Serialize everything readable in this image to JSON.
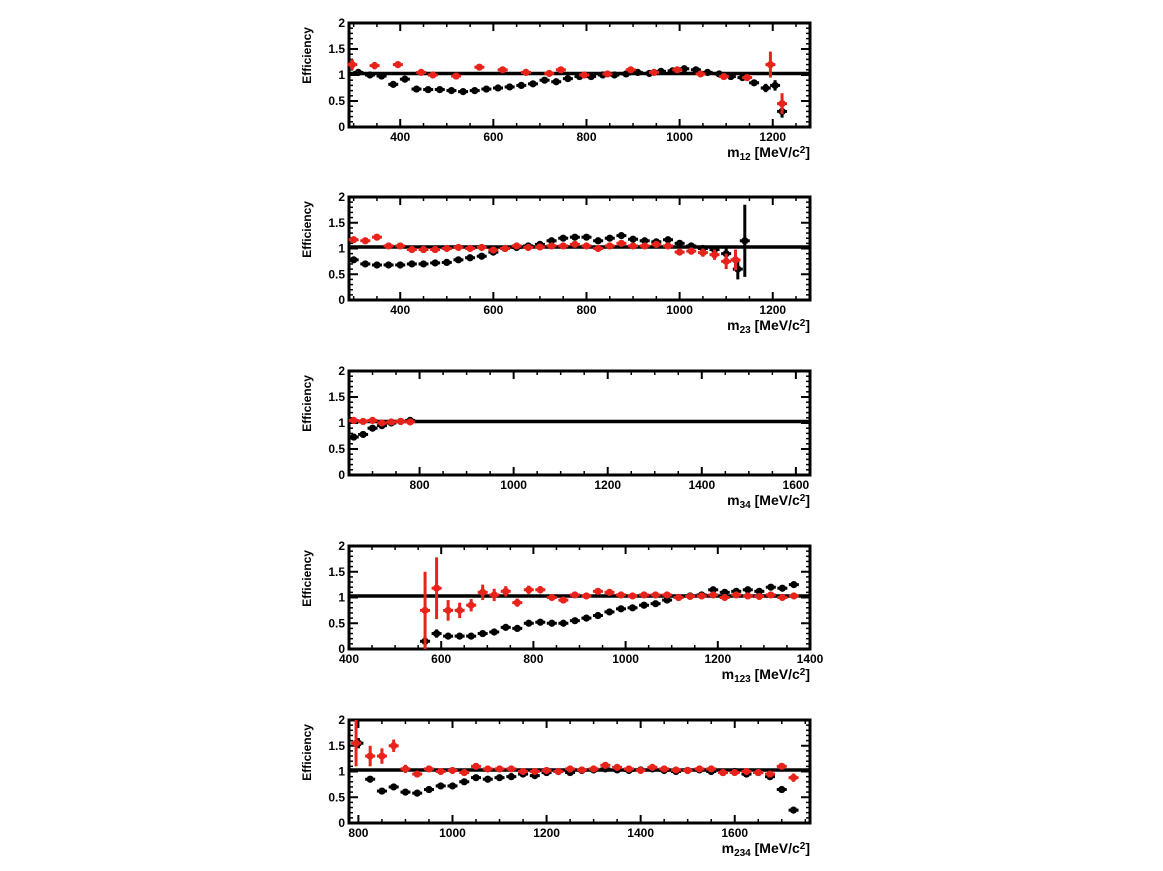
{
  "chart_data": [
    {
      "type": "scatter",
      "ylabel": "Efficiency",
      "xlabel": {
        "main": "m",
        "sub": "12",
        "unit": " [MeV/c",
        "sup": "2",
        "close": "]"
      },
      "xlim": [
        290,
        1280
      ],
      "ylim": [
        0,
        2
      ],
      "xticks": [
        400,
        600,
        800,
        1000,
        1200
      ],
      "yticks": [
        0,
        0.5,
        1,
        1.5,
        2
      ],
      "reference_line": 1.03,
      "series": [
        {
          "color": "#000000",
          "x": [
            310,
            335,
            360,
            385,
            410,
            435,
            460,
            485,
            510,
            535,
            560,
            585,
            610,
            635,
            660,
            685,
            710,
            735,
            760,
            785,
            810,
            835,
            860,
            885,
            910,
            935,
            960,
            985,
            1010,
            1035,
            1060,
            1085,
            1110,
            1135,
            1160,
            1185,
            1205,
            1220
          ],
          "y": [
            1.05,
            1.0,
            0.98,
            0.82,
            0.92,
            0.73,
            0.72,
            0.72,
            0.7,
            0.68,
            0.7,
            0.73,
            0.75,
            0.77,
            0.8,
            0.83,
            0.9,
            0.87,
            0.93,
            0.97,
            0.97,
            1.0,
            1.0,
            1.02,
            1.05,
            1.03,
            1.07,
            1.08,
            1.12,
            1.1,
            1.05,
            1.02,
            0.97,
            0.95,
            0.85,
            0.75,
            0.8,
            0.3
          ],
          "yerr": [
            0.05,
            0.04,
            0.04,
            0.04,
            0.04,
            0.03,
            0.03,
            0.03,
            0.03,
            0.03,
            0.03,
            0.03,
            0.03,
            0.03,
            0.03,
            0.03,
            0.03,
            0.03,
            0.03,
            0.03,
            0.03,
            0.03,
            0.03,
            0.03,
            0.03,
            0.03,
            0.03,
            0.03,
            0.03,
            0.03,
            0.03,
            0.04,
            0.04,
            0.05,
            0.05,
            0.08,
            0.1,
            0.12
          ]
        },
        {
          "color": "#e8231b",
          "x": [
            297,
            345,
            395,
            445,
            470,
            520,
            570,
            620,
            670,
            720,
            745,
            795,
            845,
            895,
            945,
            995,
            1045,
            1095,
            1145,
            1195,
            1220
          ],
          "y": [
            1.2,
            1.18,
            1.2,
            1.05,
            1.0,
            0.98,
            1.15,
            1.1,
            1.05,
            1.03,
            1.1,
            1.0,
            1.02,
            1.1,
            1.05,
            1.1,
            1.02,
            0.97,
            0.95,
            1.2,
            0.45
          ],
          "yerr": [
            0.1,
            0.07,
            0.06,
            0.04,
            0.04,
            0.04,
            0.04,
            0.04,
            0.04,
            0.04,
            0.04,
            0.04,
            0.04,
            0.04,
            0.04,
            0.04,
            0.04,
            0.05,
            0.06,
            0.25,
            0.2
          ]
        }
      ]
    },
    {
      "type": "scatter",
      "ylabel": "Efficiency",
      "xlabel": {
        "main": "m",
        "sub": "23",
        "unit": " [MeV/c",
        "sup": "2",
        "close": "]"
      },
      "xlim": [
        290,
        1280
      ],
      "ylim": [
        0,
        2
      ],
      "xticks": [
        400,
        600,
        800,
        1000,
        1200
      ],
      "yticks": [
        0,
        0.5,
        1,
        1.5,
        2
      ],
      "reference_line": 1.03,
      "series": [
        {
          "color": "#000000",
          "x": [
            300,
            325,
            350,
            375,
            400,
            425,
            450,
            475,
            500,
            525,
            550,
            575,
            600,
            625,
            650,
            675,
            700,
            725,
            750,
            775,
            800,
            825,
            850,
            875,
            900,
            925,
            950,
            975,
            1000,
            1025,
            1050,
            1075,
            1100,
            1125,
            1140
          ],
          "y": [
            0.78,
            0.7,
            0.68,
            0.68,
            0.68,
            0.7,
            0.7,
            0.72,
            0.73,
            0.78,
            0.82,
            0.85,
            0.93,
            1.0,
            1.02,
            1.05,
            1.08,
            1.15,
            1.2,
            1.22,
            1.22,
            1.15,
            1.2,
            1.25,
            1.18,
            1.15,
            1.13,
            1.17,
            1.1,
            1.05,
            1.0,
            0.98,
            0.9,
            0.6,
            1.15
          ],
          "yerr": [
            0.05,
            0.03,
            0.03,
            0.03,
            0.03,
            0.03,
            0.03,
            0.03,
            0.03,
            0.03,
            0.03,
            0.03,
            0.03,
            0.03,
            0.03,
            0.03,
            0.03,
            0.03,
            0.03,
            0.03,
            0.03,
            0.03,
            0.03,
            0.03,
            0.03,
            0.03,
            0.03,
            0.03,
            0.04,
            0.04,
            0.05,
            0.06,
            0.1,
            0.2,
            0.7
          ]
        },
        {
          "color": "#e8231b",
          "x": [
            300,
            325,
            350,
            375,
            400,
            425,
            450,
            475,
            500,
            525,
            550,
            575,
            600,
            625,
            650,
            675,
            700,
            725,
            750,
            775,
            800,
            825,
            850,
            875,
            900,
            925,
            950,
            975,
            1000,
            1025,
            1050,
            1075,
            1100,
            1120
          ],
          "y": [
            1.17,
            1.15,
            1.22,
            1.05,
            1.05,
            0.98,
            0.98,
            0.98,
            1.0,
            1.02,
            1.0,
            1.02,
            0.97,
            1.0,
            1.05,
            1.02,
            1.03,
            1.05,
            1.05,
            1.08,
            1.05,
            1.0,
            1.05,
            1.1,
            1.05,
            1.05,
            1.08,
            1.05,
            0.93,
            0.95,
            0.92,
            0.88,
            0.75,
            0.78
          ],
          "yerr": [
            0.06,
            0.04,
            0.04,
            0.04,
            0.04,
            0.04,
            0.04,
            0.04,
            0.04,
            0.04,
            0.04,
            0.04,
            0.04,
            0.04,
            0.04,
            0.04,
            0.04,
            0.04,
            0.04,
            0.04,
            0.04,
            0.04,
            0.04,
            0.04,
            0.04,
            0.04,
            0.04,
            0.04,
            0.06,
            0.07,
            0.08,
            0.1,
            0.15,
            0.2
          ]
        }
      ]
    },
    {
      "type": "scatter",
      "ylabel": "Efficiency",
      "xlabel": {
        "main": "m",
        "sub": "34",
        "unit": " [MeV/c",
        "sup": "2",
        "close": "]"
      },
      "xlim": [
        650,
        1630
      ],
      "ylim": [
        0,
        2
      ],
      "xticks": [
        800,
        1000,
        1200,
        1400,
        1600
      ],
      "yticks": [
        0,
        0.5,
        1,
        1.5,
        2
      ],
      "reference_line": 1.03,
      "series": [
        {
          "color": "#000000",
          "x": [
            660,
            680,
            700,
            720,
            740,
            760,
            780
          ],
          "y": [
            0.73,
            0.78,
            0.9,
            0.95,
            1.0,
            1.03,
            1.05
          ],
          "yerr": [
            0.06,
            0.05,
            0.04,
            0.04,
            0.04,
            0.04,
            0.04
          ]
        },
        {
          "color": "#e8231b",
          "x": [
            660,
            680,
            700,
            720,
            740,
            760,
            780
          ],
          "y": [
            1.05,
            1.03,
            1.05,
            1.0,
            1.02,
            1.03,
            1.02
          ],
          "yerr": [
            0.05,
            0.04,
            0.04,
            0.04,
            0.04,
            0.04,
            0.04
          ]
        }
      ]
    },
    {
      "type": "scatter",
      "ylabel": "Efficiency",
      "xlabel": {
        "main": "m",
        "sub": "123",
        "unit": " [MeV/c",
        "sup": "2",
        "close": "]"
      },
      "xlim": [
        400,
        1400
      ],
      "ylim": [
        0,
        2
      ],
      "xticks": [
        400,
        600,
        800,
        1000,
        1200,
        1400
      ],
      "yticks": [
        0,
        0.5,
        1,
        1.5,
        2
      ],
      "reference_line": 1.03,
      "series": [
        {
          "color": "#000000",
          "x": [
            565,
            590,
            615,
            640,
            665,
            690,
            715,
            740,
            765,
            790,
            815,
            840,
            865,
            890,
            915,
            940,
            965,
            990,
            1015,
            1040,
            1065,
            1090,
            1115,
            1140,
            1165,
            1190,
            1215,
            1240,
            1265,
            1290,
            1315,
            1340,
            1365
          ],
          "y": [
            0.15,
            0.3,
            0.25,
            0.25,
            0.25,
            0.3,
            0.33,
            0.42,
            0.4,
            0.5,
            0.52,
            0.5,
            0.5,
            0.55,
            0.6,
            0.65,
            0.72,
            0.78,
            0.8,
            0.85,
            0.88,
            0.95,
            1.0,
            1.03,
            1.05,
            1.15,
            1.1,
            1.12,
            1.15,
            1.12,
            1.2,
            1.18,
            1.25
          ],
          "yerr": [
            0.1,
            0.08,
            0.05,
            0.04,
            0.04,
            0.04,
            0.04,
            0.04,
            0.03,
            0.03,
            0.03,
            0.03,
            0.03,
            0.03,
            0.03,
            0.03,
            0.03,
            0.03,
            0.03,
            0.03,
            0.03,
            0.03,
            0.03,
            0.03,
            0.03,
            0.03,
            0.03,
            0.03,
            0.03,
            0.03,
            0.03,
            0.03,
            0.03
          ]
        },
        {
          "color": "#e8231b",
          "x": [
            565,
            590,
            615,
            640,
            665,
            690,
            715,
            740,
            765,
            790,
            815,
            840,
            865,
            890,
            915,
            940,
            965,
            990,
            1015,
            1040,
            1065,
            1090,
            1115,
            1140,
            1165,
            1190,
            1215,
            1240,
            1265,
            1290,
            1315,
            1340,
            1365
          ],
          "y": [
            0.75,
            1.18,
            0.75,
            0.75,
            0.85,
            1.1,
            1.05,
            1.12,
            0.9,
            1.15,
            1.15,
            1.0,
            0.95,
            1.05,
            1.03,
            1.12,
            1.1,
            1.05,
            1.03,
            1.05,
            1.05,
            1.05,
            1.0,
            1.02,
            1.03,
            1.05,
            1.0,
            1.05,
            1.03,
            1.02,
            1.05,
            1.0,
            1.03
          ],
          "yerr": [
            0.75,
            0.6,
            0.2,
            0.15,
            0.12,
            0.15,
            0.12,
            0.1,
            0.08,
            0.08,
            0.07,
            0.06,
            0.06,
            0.05,
            0.05,
            0.05,
            0.05,
            0.04,
            0.04,
            0.04,
            0.04,
            0.04,
            0.04,
            0.04,
            0.04,
            0.04,
            0.04,
            0.04,
            0.04,
            0.04,
            0.04,
            0.04,
            0.04
          ]
        }
      ]
    },
    {
      "type": "scatter",
      "ylabel": "Efficiency",
      "xlabel": {
        "main": "m",
        "sub": "234",
        "unit": " [MeV/c",
        "sup": "2",
        "close": "]"
      },
      "xlim": [
        780,
        1760
      ],
      "ylim": [
        0,
        2
      ],
      "xticks": [
        800,
        1000,
        1200,
        1400,
        1600
      ],
      "yticks": [
        0,
        0.5,
        1,
        1.5,
        2
      ],
      "reference_line": 1.03,
      "series": [
        {
          "color": "#000000",
          "x": [
            800,
            825,
            850,
            875,
            900,
            925,
            950,
            975,
            1000,
            1025,
            1050,
            1075,
            1100,
            1125,
            1150,
            1175,
            1200,
            1225,
            1250,
            1275,
            1300,
            1325,
            1350,
            1375,
            1400,
            1425,
            1450,
            1475,
            1500,
            1525,
            1550,
            1575,
            1600,
            1625,
            1650,
            1675,
            1700,
            1725
          ],
          "y": [
            1.55,
            0.85,
            0.62,
            0.7,
            0.6,
            0.58,
            0.65,
            0.72,
            0.72,
            0.8,
            0.88,
            0.85,
            0.88,
            0.9,
            0.95,
            0.92,
            0.98,
            1.0,
            0.98,
            1.02,
            1.03,
            1.05,
            1.03,
            1.02,
            1.03,
            1.05,
            1.02,
            1.0,
            1.02,
            1.03,
            1.0,
            0.98,
            1.0,
            0.95,
            0.98,
            0.9,
            0.65,
            0.25
          ],
          "yerr": [
            0.1,
            0.05,
            0.04,
            0.04,
            0.03,
            0.03,
            0.03,
            0.03,
            0.03,
            0.03,
            0.03,
            0.03,
            0.03,
            0.03,
            0.03,
            0.03,
            0.03,
            0.03,
            0.03,
            0.03,
            0.03,
            0.03,
            0.03,
            0.03,
            0.03,
            0.03,
            0.03,
            0.03,
            0.03,
            0.03,
            0.03,
            0.03,
            0.03,
            0.04,
            0.04,
            0.05,
            0.05,
            0.05
          ]
        },
        {
          "color": "#e8231b",
          "x": [
            795,
            825,
            850,
            875,
            900,
            925,
            950,
            975,
            1000,
            1025,
            1050,
            1075,
            1100,
            1125,
            1150,
            1175,
            1200,
            1225,
            1250,
            1275,
            1300,
            1325,
            1350,
            1375,
            1400,
            1425,
            1450,
            1475,
            1500,
            1525,
            1550,
            1575,
            1600,
            1625,
            1650,
            1675,
            1700,
            1725
          ],
          "y": [
            1.55,
            1.3,
            1.3,
            1.5,
            1.05,
            0.95,
            1.05,
            1.0,
            1.02,
            0.98,
            1.1,
            1.05,
            1.05,
            1.05,
            1.0,
            1.0,
            1.02,
            1.0,
            1.05,
            1.03,
            1.05,
            1.12,
            1.08,
            1.05,
            1.02,
            1.08,
            1.05,
            1.03,
            1.02,
            1.05,
            1.05,
            0.98,
            0.98,
            1.0,
            0.98,
            0.95,
            1.1,
            0.88
          ],
          "yerr": [
            0.45,
            0.2,
            0.15,
            0.12,
            0.08,
            0.06,
            0.05,
            0.05,
            0.05,
            0.05,
            0.05,
            0.04,
            0.04,
            0.04,
            0.04,
            0.04,
            0.04,
            0.04,
            0.04,
            0.04,
            0.04,
            0.04,
            0.04,
            0.04,
            0.04,
            0.04,
            0.04,
            0.04,
            0.04,
            0.04,
            0.04,
            0.04,
            0.04,
            0.04,
            0.04,
            0.04,
            0.06,
            0.08
          ]
        }
      ]
    }
  ]
}
